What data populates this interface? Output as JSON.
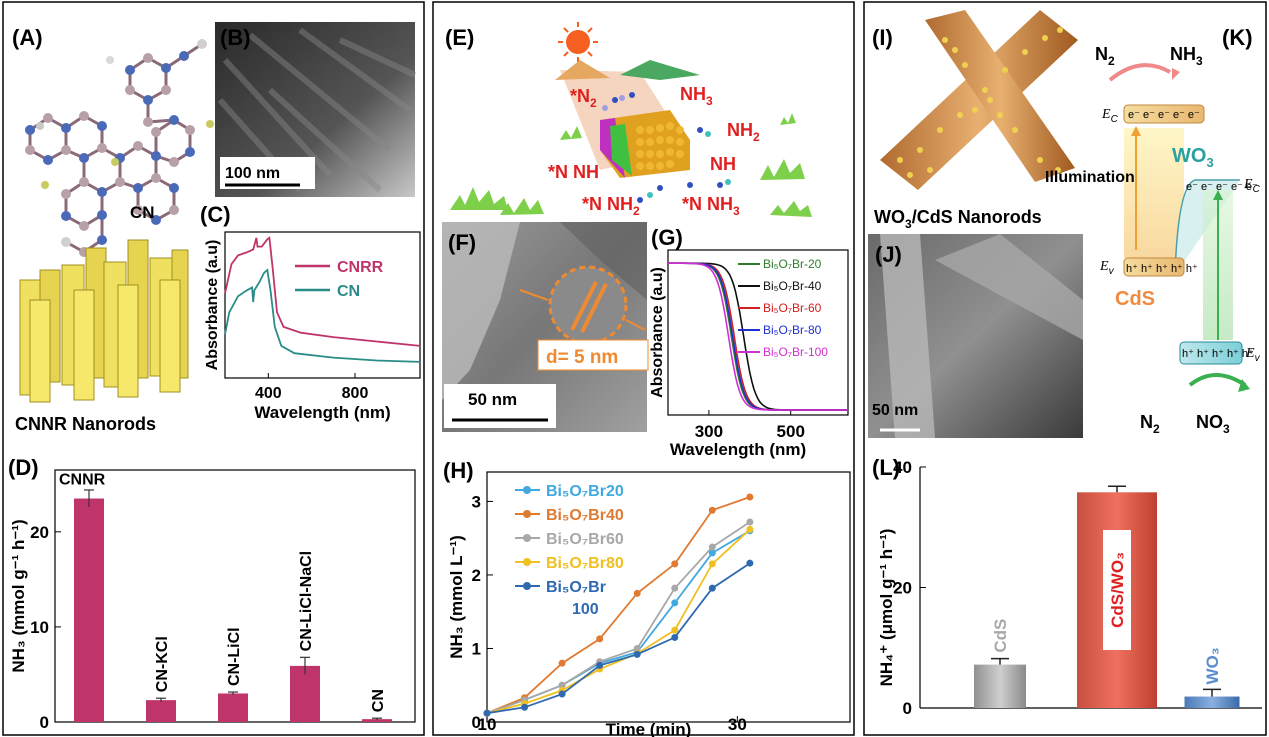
{
  "panels": {
    "A": {
      "letter": "(A)",
      "label_cn": "CN",
      "label_nanorods": "CNNR Nanorods"
    },
    "B": {
      "letter": "(B)",
      "scale": "100 nm"
    },
    "C": {
      "letter": "(C)"
    },
    "D": {
      "letter": "(D)"
    },
    "E": {
      "letter": "(E)",
      "labels": [
        "*N",
        "2",
        "NH",
        "3",
        "NH",
        "2",
        "*N NH",
        "NH",
        "*N NH",
        "2",
        "*N NH",
        "3"
      ]
    },
    "F": {
      "letter": "(F)",
      "d_label": "d= 5 nm",
      "scale": "50 nm"
    },
    "G": {
      "letter": "(G)"
    },
    "H": {
      "letter": "(H)"
    },
    "I": {
      "letter": "(I)"
    },
    "J": {
      "letter": "(J)",
      "title": "WO",
      "title_sub": "3",
      "title_rest": "/CdS Nanorods",
      "scale": "50 nm"
    },
    "K": {
      "letter": "(K)",
      "n2_top": "N",
      "n2_top_sub": "2",
      "nh3": "NH",
      "nh3_sub": "3",
      "ec_left": "E",
      "ec_left_sub": "C",
      "electrons": "e⁻ e⁻ e⁻ e⁻ e⁻",
      "illumination": "Illumination",
      "wo3": "WO",
      "wo3_sub": "3",
      "ec_right": "E",
      "ec_right_sub": "C",
      "ev_left": "E",
      "ev_left_sub": "v",
      "holes": "h⁺ h⁺ h⁺ h⁺ h⁺",
      "cds": "CdS",
      "ev_right": "E",
      "ev_right_sub": "v",
      "n2_bot": "N",
      "n2_bot_sub": "2",
      "no3": "NO",
      "no3_sub": "3"
    },
    "L": {
      "letter": "(L)"
    }
  },
  "chart_data": [
    {
      "id": "C",
      "type": "line",
      "xlabel": "Wavelength (nm)",
      "ylabel": "Absorbance (a.u)",
      "xticks": [
        400,
        800
      ],
      "xlim": [
        200,
        1100
      ],
      "series": [
        {
          "name": "CNRR",
          "color": "#c0346c",
          "points": [
            [
              200,
              0.58
            ],
            [
              230,
              0.78
            ],
            [
              260,
              0.84
            ],
            [
              300,
              0.86
            ],
            [
              330,
              0.88
            ],
            [
              345,
              0.96
            ],
            [
              350,
              0.9
            ],
            [
              370,
              0.9
            ],
            [
              395,
              0.95
            ],
            [
              405,
              0.96
            ],
            [
              420,
              0.75
            ],
            [
              440,
              0.45
            ],
            [
              470,
              0.35
            ],
            [
              550,
              0.31
            ],
            [
              700,
              0.28
            ],
            [
              900,
              0.25
            ],
            [
              1100,
              0.22
            ]
          ]
        },
        {
          "name": "CN",
          "color": "#2a8c88",
          "points": [
            [
              200,
              0.3
            ],
            [
              220,
              0.45
            ],
            [
              260,
              0.56
            ],
            [
              300,
              0.6
            ],
            [
              325,
              0.62
            ],
            [
              330,
              0.52
            ],
            [
              335,
              0.6
            ],
            [
              360,
              0.66
            ],
            [
              380,
              0.72
            ],
            [
              395,
              0.74
            ],
            [
              410,
              0.6
            ],
            [
              430,
              0.35
            ],
            [
              460,
              0.22
            ],
            [
              520,
              0.17
            ],
            [
              700,
              0.14
            ],
            [
              900,
              0.12
            ],
            [
              1100,
              0.11
            ]
          ]
        }
      ]
    },
    {
      "id": "D",
      "type": "bar",
      "categories": [
        "CNNR",
        "CN-KCl",
        "CN-LiCl",
        "CN-LiCl-NaCl",
        "CN"
      ],
      "values": [
        23.5,
        2.3,
        3.0,
        5.9,
        0.3
      ],
      "errors": [
        0.9,
        0.2,
        0.15,
        0.9,
        0.1
      ],
      "ylabel": "NH₃ (mmol g⁻¹ h⁻¹)",
      "yticks": [
        0,
        10,
        20
      ],
      "ylim": [
        0,
        26.5
      ],
      "color": "#c0346c"
    },
    {
      "id": "G",
      "type": "line",
      "xlabel": "Wavelength (nm)",
      "ylabel": "Absorbance (a.u)",
      "xticks": [
        300,
        500
      ],
      "xlim": [
        200,
        640
      ],
      "series": [
        {
          "name": "Bi₅O₇Br-20",
          "color": "#2e7d2e",
          "edge": 355
        },
        {
          "name": "Bi₅O₇Br-40",
          "color": "#111111",
          "edge": 385
        },
        {
          "name": "Bi₅O₇Br-60",
          "color": "#d02020",
          "edge": 362
        },
        {
          "name": "Bi₅O₇Br-80",
          "color": "#2030d0",
          "edge": 358
        },
        {
          "name": "Bi₅O₇Br-100",
          "color": "#d030d0",
          "edge": 348
        }
      ]
    },
    {
      "id": "H",
      "type": "line",
      "xlabel": "Time (min)",
      "ylabel": "NH₃ (mmol L⁻¹)",
      "xticks": [
        10,
        30
      ],
      "yticks": [
        0,
        1,
        2,
        3
      ],
      "xlim": [
        10,
        39
      ],
      "ylim": [
        0,
        3.4
      ],
      "series": [
        {
          "name": "Bi₅O₇Br20",
          "color": "#3fa9e0",
          "points": [
            [
              10,
              0.12
            ],
            [
              13,
              0.3
            ],
            [
              16,
              0.5
            ],
            [
              19,
              0.8
            ],
            [
              22,
              0.95
            ],
            [
              25,
              1.62
            ],
            [
              28,
              2.3
            ],
            [
              31,
              2.6
            ]
          ]
        },
        {
          "name": "Bi₅O₇Br40",
          "color": "#e07a30",
          "points": [
            [
              10,
              0.12
            ],
            [
              13,
              0.33
            ],
            [
              16,
              0.8
            ],
            [
              19,
              1.13
            ],
            [
              22,
              1.75
            ],
            [
              25,
              2.15
            ],
            [
              28,
              2.88
            ],
            [
              31,
              3.06
            ]
          ]
        },
        {
          "name": "Bi₅O₇Br60",
          "color": "#a8a8a8",
          "points": [
            [
              10,
              0.12
            ],
            [
              13,
              0.3
            ],
            [
              16,
              0.5
            ],
            [
              19,
              0.82
            ],
            [
              22,
              1.0
            ],
            [
              25,
              1.82
            ],
            [
              28,
              2.38
            ],
            [
              31,
              2.72
            ]
          ]
        },
        {
          "name": "Bi₅O₇Br80",
          "color": "#f0c020",
          "points": [
            [
              10,
              0.12
            ],
            [
              13,
              0.25
            ],
            [
              16,
              0.43
            ],
            [
              19,
              0.72
            ],
            [
              22,
              0.93
            ],
            [
              25,
              1.25
            ],
            [
              28,
              2.15
            ],
            [
              31,
              2.62
            ]
          ]
        },
        {
          "name": "Bi₅O₇Br\n100",
          "color": "#2f6ab0",
          "points": [
            [
              10,
              0.12
            ],
            [
              13,
              0.2
            ],
            [
              16,
              0.38
            ],
            [
              19,
              0.77
            ],
            [
              22,
              0.92
            ],
            [
              25,
              1.15
            ],
            [
              28,
              1.82
            ],
            [
              31,
              2.16
            ]
          ]
        }
      ]
    },
    {
      "id": "L",
      "type": "bar",
      "categories": [
        "CdS",
        "CdS/WO₃",
        "WO₃"
      ],
      "values": [
        7.2,
        35.8,
        1.9
      ],
      "errors": [
        1.0,
        1.0,
        1.2
      ],
      "colors": [
        "#a8a8a8",
        "#e0503c",
        "#5a8ed0"
      ],
      "ylabel": "NH₄⁺ (μmol g⁻¹ h⁻¹)",
      "yticks": [
        0,
        20,
        40
      ],
      "ylim": [
        0,
        40
      ]
    }
  ]
}
